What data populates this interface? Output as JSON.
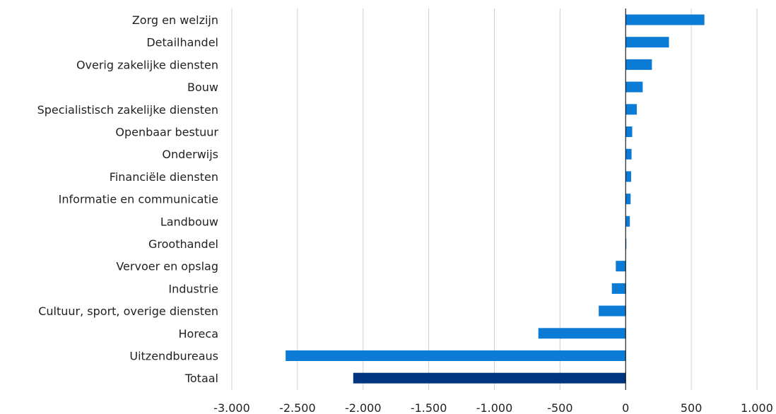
{
  "chart_data": {
    "type": "bar",
    "orientation": "horizontal",
    "title": "",
    "xlabel": "",
    "ylabel": "",
    "categories": [
      "Zorg en welzijn",
      "Detailhandel",
      "Overig zakelijke diensten",
      "Bouw",
      "Specialistisch zakelijke diensten",
      "Openbaar bestuur",
      "Onderwijs",
      "Financiële diensten",
      "Informatie en communicatie",
      "Landbouw",
      "Groothandel",
      "Vervoer en opslag",
      "Industrie",
      "Cultuur, sport, overige diensten",
      "Horeca",
      "Uitzendbureaus",
      "Totaal"
    ],
    "values": [
      600,
      330,
      200,
      130,
      85,
      50,
      45,
      42,
      38,
      32,
      3,
      -75,
      -105,
      -205,
      -665,
      -2590,
      -2075
    ],
    "bar_colors": [
      "#0b7bd6",
      "#0b7bd6",
      "#0b7bd6",
      "#0b7bd6",
      "#0b7bd6",
      "#0b7bd6",
      "#0b7bd6",
      "#0b7bd6",
      "#0b7bd6",
      "#0b7bd6",
      "#0b7bd6",
      "#0b7bd6",
      "#0b7bd6",
      "#0b7bd6",
      "#0b7bd6",
      "#0b7bd6",
      "#003580"
    ],
    "xlim": [
      -3000,
      1000
    ],
    "xticks": [
      -3000,
      -2500,
      -2000,
      -1500,
      -1000,
      -500,
      0,
      500,
      1000
    ],
    "xtick_labels": [
      "-3.000",
      "-2.500",
      "-2.000",
      "-1.500",
      "-1.000",
      "-500",
      "0",
      "500",
      "1.000"
    ],
    "grid": true,
    "legend": "none"
  }
}
